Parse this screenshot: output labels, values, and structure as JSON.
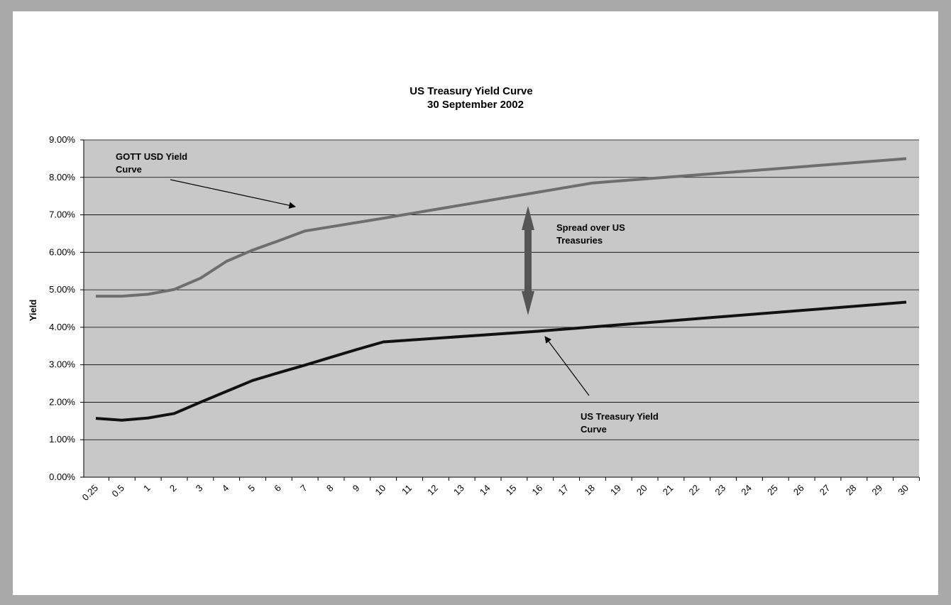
{
  "colors": {
    "gott_line": "#6e6e6e",
    "treasury_line": "#111111",
    "spread_arrow": "#555555",
    "plot_background": "#c8c8c8",
    "gridline": "#000000",
    "frame": "#a9a9a9"
  },
  "chart_data": {
    "type": "line",
    "title": [
      "US Treasury Yield Curve",
      "30 September 2002"
    ],
    "xlabel": "",
    "ylabel": "Yield",
    "categories": [
      "0.25",
      "0.5",
      "1",
      "2",
      "3",
      "4",
      "5",
      "6",
      "7",
      "8",
      "9",
      "10",
      "11",
      "12",
      "13",
      "14",
      "15",
      "16",
      "17",
      "18",
      "19",
      "20",
      "21",
      "22",
      "23",
      "24",
      "25",
      "26",
      "27",
      "28",
      "29",
      "30"
    ],
    "ylim": [
      0,
      9
    ],
    "yticks": [
      "0.00%",
      "1.00%",
      "2.00%",
      "3.00%",
      "4.00%",
      "5.00%",
      "6.00%",
      "7.00%",
      "8.00%",
      "9.00%"
    ],
    "grid": true,
    "series": [
      {
        "name": "GOTT USD Yield Curve",
        "points": [
          [
            0.25,
            4.83
          ],
          [
            0.5,
            4.83
          ],
          [
            1,
            4.88
          ],
          [
            2,
            5.01
          ],
          [
            3,
            5.31
          ],
          [
            4,
            5.76
          ],
          [
            5,
            6.06
          ],
          [
            6,
            6.31
          ],
          [
            7,
            6.57
          ],
          [
            10,
            6.91
          ],
          [
            18,
            7.85
          ],
          [
            30,
            8.5
          ]
        ]
      },
      {
        "name": "US Treasury Yield Curve",
        "points": [
          [
            0.25,
            1.57
          ],
          [
            0.5,
            1.52
          ],
          [
            1,
            1.58
          ],
          [
            2,
            1.7
          ],
          [
            3,
            2.0
          ],
          [
            4,
            2.29
          ],
          [
            5,
            2.58
          ],
          [
            6,
            2.79
          ],
          [
            7,
            2.99
          ],
          [
            8,
            3.2
          ],
          [
            9,
            3.41
          ],
          [
            10,
            3.61
          ],
          [
            16,
            3.9
          ],
          [
            20,
            4.12
          ],
          [
            30,
            4.67
          ]
        ]
      }
    ],
    "annotations": {
      "gott_label": [
        "GOTT USD Yield",
        "Curve"
      ],
      "spread_label": [
        "Spread over US",
        "Treasuries"
      ],
      "treasury_label": [
        "US Treasury Yield",
        "Curve"
      ]
    }
  }
}
